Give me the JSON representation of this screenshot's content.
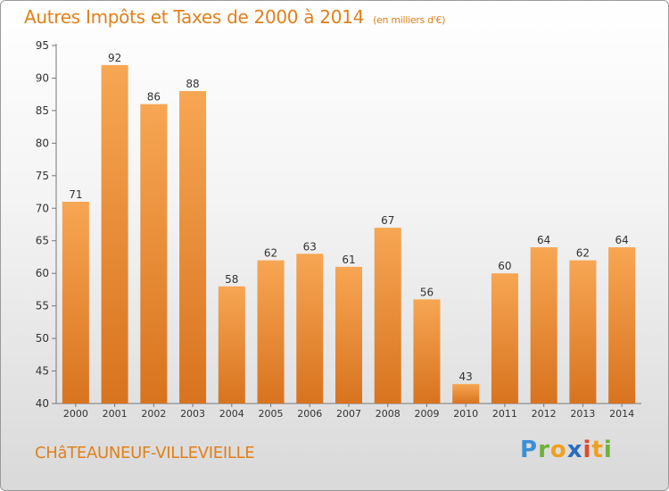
{
  "title": "Autres Impôts et Taxes de 2000 à 2014",
  "subtitle": "(en milliers d'€)",
  "location": "CHâTEAUNEUF-VILLEVIEILLE",
  "brand": {
    "letters": [
      "P",
      "r",
      "o",
      "x",
      "i",
      "t",
      "i"
    ],
    "colors": [
      "#3a8fd6",
      "#6bb23a",
      "#f0a020",
      "#2a6cc0",
      "#e04a2a",
      "#f0a020",
      "#6bb23a"
    ]
  },
  "chart_data": {
    "type": "bar",
    "categories": [
      "2000",
      "2001",
      "2002",
      "2003",
      "2004",
      "2005",
      "2006",
      "2007",
      "2008",
      "2009",
      "2010",
      "2011",
      "2012",
      "2013",
      "2014"
    ],
    "values": [
      71,
      92,
      86,
      88,
      58,
      62,
      63,
      61,
      67,
      56,
      43,
      60,
      64,
      62,
      64
    ],
    "ylim": [
      40,
      95
    ],
    "yticks": [
      40,
      45,
      50,
      55,
      60,
      65,
      70,
      75,
      80,
      85,
      90,
      95
    ],
    "grid": false,
    "colors": {
      "bar_top": "#f7a653",
      "bar_bottom": "#d8731f",
      "text": "#333333",
      "axis": "#777777"
    }
  }
}
